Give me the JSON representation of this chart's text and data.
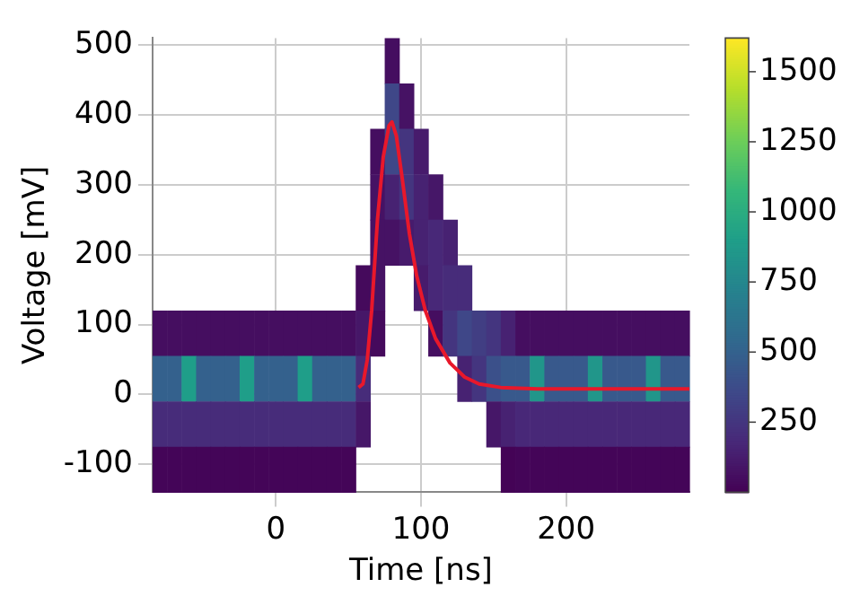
{
  "chart_data": {
    "type": "heatmap",
    "xlabel": "Time [ns]",
    "ylabel": "Voltage [mV]",
    "xlim": [
      -85,
      285
    ],
    "xticks": [
      0,
      100,
      200
    ],
    "ylim": [
      -140,
      510
    ],
    "yticks": [
      -100,
      0,
      100,
      200,
      300,
      400,
      500
    ],
    "grid": true,
    "clim": [
      0,
      1620
    ],
    "cticks": [
      250,
      500,
      750,
      1000,
      1250,
      1500
    ],
    "x": [
      -80,
      -70,
      -60,
      -50,
      -40,
      -30,
      -20,
      -10,
      0,
      10,
      20,
      30,
      40,
      50,
      60,
      70,
      80,
      90,
      100,
      110,
      120,
      130,
      140,
      150,
      160,
      170,
      180,
      190,
      200,
      210,
      220,
      230,
      240,
      250,
      260,
      270,
      280
    ],
    "cells": [
      [
        null,
        null,
        null,
        null,
        null,
        null,
        null,
        null,
        null,
        null,
        null,
        null,
        null,
        null,
        null,
        null,
        60,
        null,
        null,
        null,
        null,
        null,
        null,
        null,
        null,
        null,
        null,
        null,
        null,
        null,
        null,
        null,
        null,
        null,
        null,
        null,
        null
      ],
      [
        null,
        null,
        null,
        null,
        null,
        null,
        null,
        null,
        null,
        null,
        null,
        null,
        null,
        null,
        null,
        null,
        350,
        80,
        null,
        null,
        null,
        null,
        null,
        null,
        null,
        null,
        null,
        null,
        null,
        null,
        null,
        null,
        null,
        null,
        null,
        null,
        null
      ],
      [
        null,
        null,
        null,
        null,
        null,
        null,
        null,
        null,
        null,
        null,
        null,
        null,
        null,
        null,
        null,
        60,
        350,
        250,
        120,
        null,
        null,
        null,
        null,
        null,
        null,
        null,
        null,
        null,
        null,
        null,
        null,
        null,
        null,
        null,
        null,
        null,
        null
      ],
      [
        null,
        null,
        null,
        null,
        null,
        null,
        null,
        null,
        null,
        null,
        null,
        null,
        null,
        null,
        null,
        80,
        150,
        250,
        150,
        100,
        null,
        null,
        null,
        null,
        null,
        null,
        null,
        null,
        null,
        null,
        null,
        null,
        null,
        null,
        null,
        null,
        null
      ],
      [
        null,
        null,
        null,
        null,
        null,
        null,
        null,
        null,
        null,
        null,
        null,
        null,
        null,
        null,
        null,
        80,
        80,
        120,
        150,
        180,
        150,
        null,
        null,
        null,
        null,
        null,
        null,
        null,
        null,
        null,
        null,
        null,
        null,
        null,
        null,
        null,
        null
      ],
      [
        null,
        null,
        null,
        null,
        null,
        null,
        null,
        null,
        null,
        null,
        null,
        null,
        null,
        null,
        40,
        80,
        null,
        null,
        120,
        180,
        200,
        200,
        null,
        null,
        null,
        null,
        null,
        null,
        null,
        null,
        null,
        null,
        null,
        null,
        null,
        null,
        null
      ],
      [
        60,
        60,
        60,
        60,
        60,
        60,
        60,
        60,
        60,
        60,
        60,
        60,
        60,
        60,
        100,
        40,
        null,
        null,
        null,
        60,
        250,
        350,
        300,
        250,
        150,
        60,
        60,
        60,
        60,
        60,
        60,
        60,
        60,
        60,
        60,
        60,
        60
      ],
      [
        500,
        500,
        900,
        500,
        500,
        500,
        900,
        500,
        500,
        500,
        900,
        500,
        500,
        500,
        200,
        null,
        null,
        null,
        null,
        null,
        null,
        150,
        250,
        400,
        450,
        450,
        850,
        450,
        450,
        450,
        850,
        450,
        450,
        450,
        850,
        450,
        450
      ],
      [
        200,
        200,
        200,
        200,
        200,
        200,
        200,
        200,
        200,
        200,
        200,
        200,
        200,
        200,
        100,
        null,
        null,
        null,
        null,
        null,
        null,
        null,
        null,
        100,
        150,
        180,
        180,
        180,
        180,
        180,
        180,
        180,
        180,
        180,
        180,
        180,
        180
      ],
      [
        20,
        20,
        20,
        20,
        20,
        20,
        20,
        20,
        20,
        20,
        20,
        20,
        20,
        20,
        null,
        null,
        null,
        null,
        null,
        null,
        null,
        null,
        null,
        null,
        10,
        20,
        20,
        20,
        20,
        20,
        20,
        20,
        20,
        20,
        20,
        20,
        20
      ]
    ],
    "series": [
      {
        "type": "line",
        "color": "#e8182b",
        "x": [
          57,
          60,
          63,
          66,
          70,
          74,
          78,
          80,
          83,
          87,
          92,
          97,
          103,
          110,
          120,
          130,
          140,
          155,
          180,
          285
        ],
        "values": [
          10,
          15,
          50,
          120,
          250,
          340,
          385,
          390,
          370,
          310,
          230,
          170,
          120,
          80,
          45,
          25,
          15,
          10,
          8,
          8
        ]
      }
    ]
  }
}
